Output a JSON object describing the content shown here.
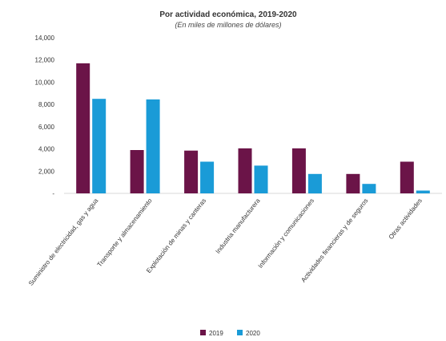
{
  "chart_data": {
    "type": "bar",
    "title": "Por actividad económica, 2019-2020",
    "subtitle": "(En miles de millones de dólares)",
    "xlabel": "",
    "ylabel": "",
    "categories": [
      "Suministro de electricidad, gas y agua",
      "Transporte y almacenamiento",
      "Explotación de minas y canteras",
      "Industria manufacturera",
      "Información y comunicaciones",
      "Actividades financieras y de seguros",
      "Otras actividades"
    ],
    "series": [
      {
        "name": "2019",
        "color": "#6b1448",
        "values": [
          11700,
          3900,
          3850,
          4050,
          4050,
          1750,
          2850
        ]
      },
      {
        "name": "2020",
        "color": "#1a9bd7",
        "values": [
          8500,
          8450,
          2850,
          2500,
          1750,
          850,
          250
        ]
      }
    ],
    "ylim": [
      0,
      14000
    ],
    "yticks": [
      0,
      2000,
      4000,
      6000,
      8000,
      10000,
      12000,
      14000
    ],
    "ytick_labels": [
      "-",
      "2,000",
      "4,000",
      "6,000",
      "8,000",
      "10,000",
      "12,000",
      "14,000"
    ],
    "grid": false,
    "legend_position": "bottom"
  }
}
